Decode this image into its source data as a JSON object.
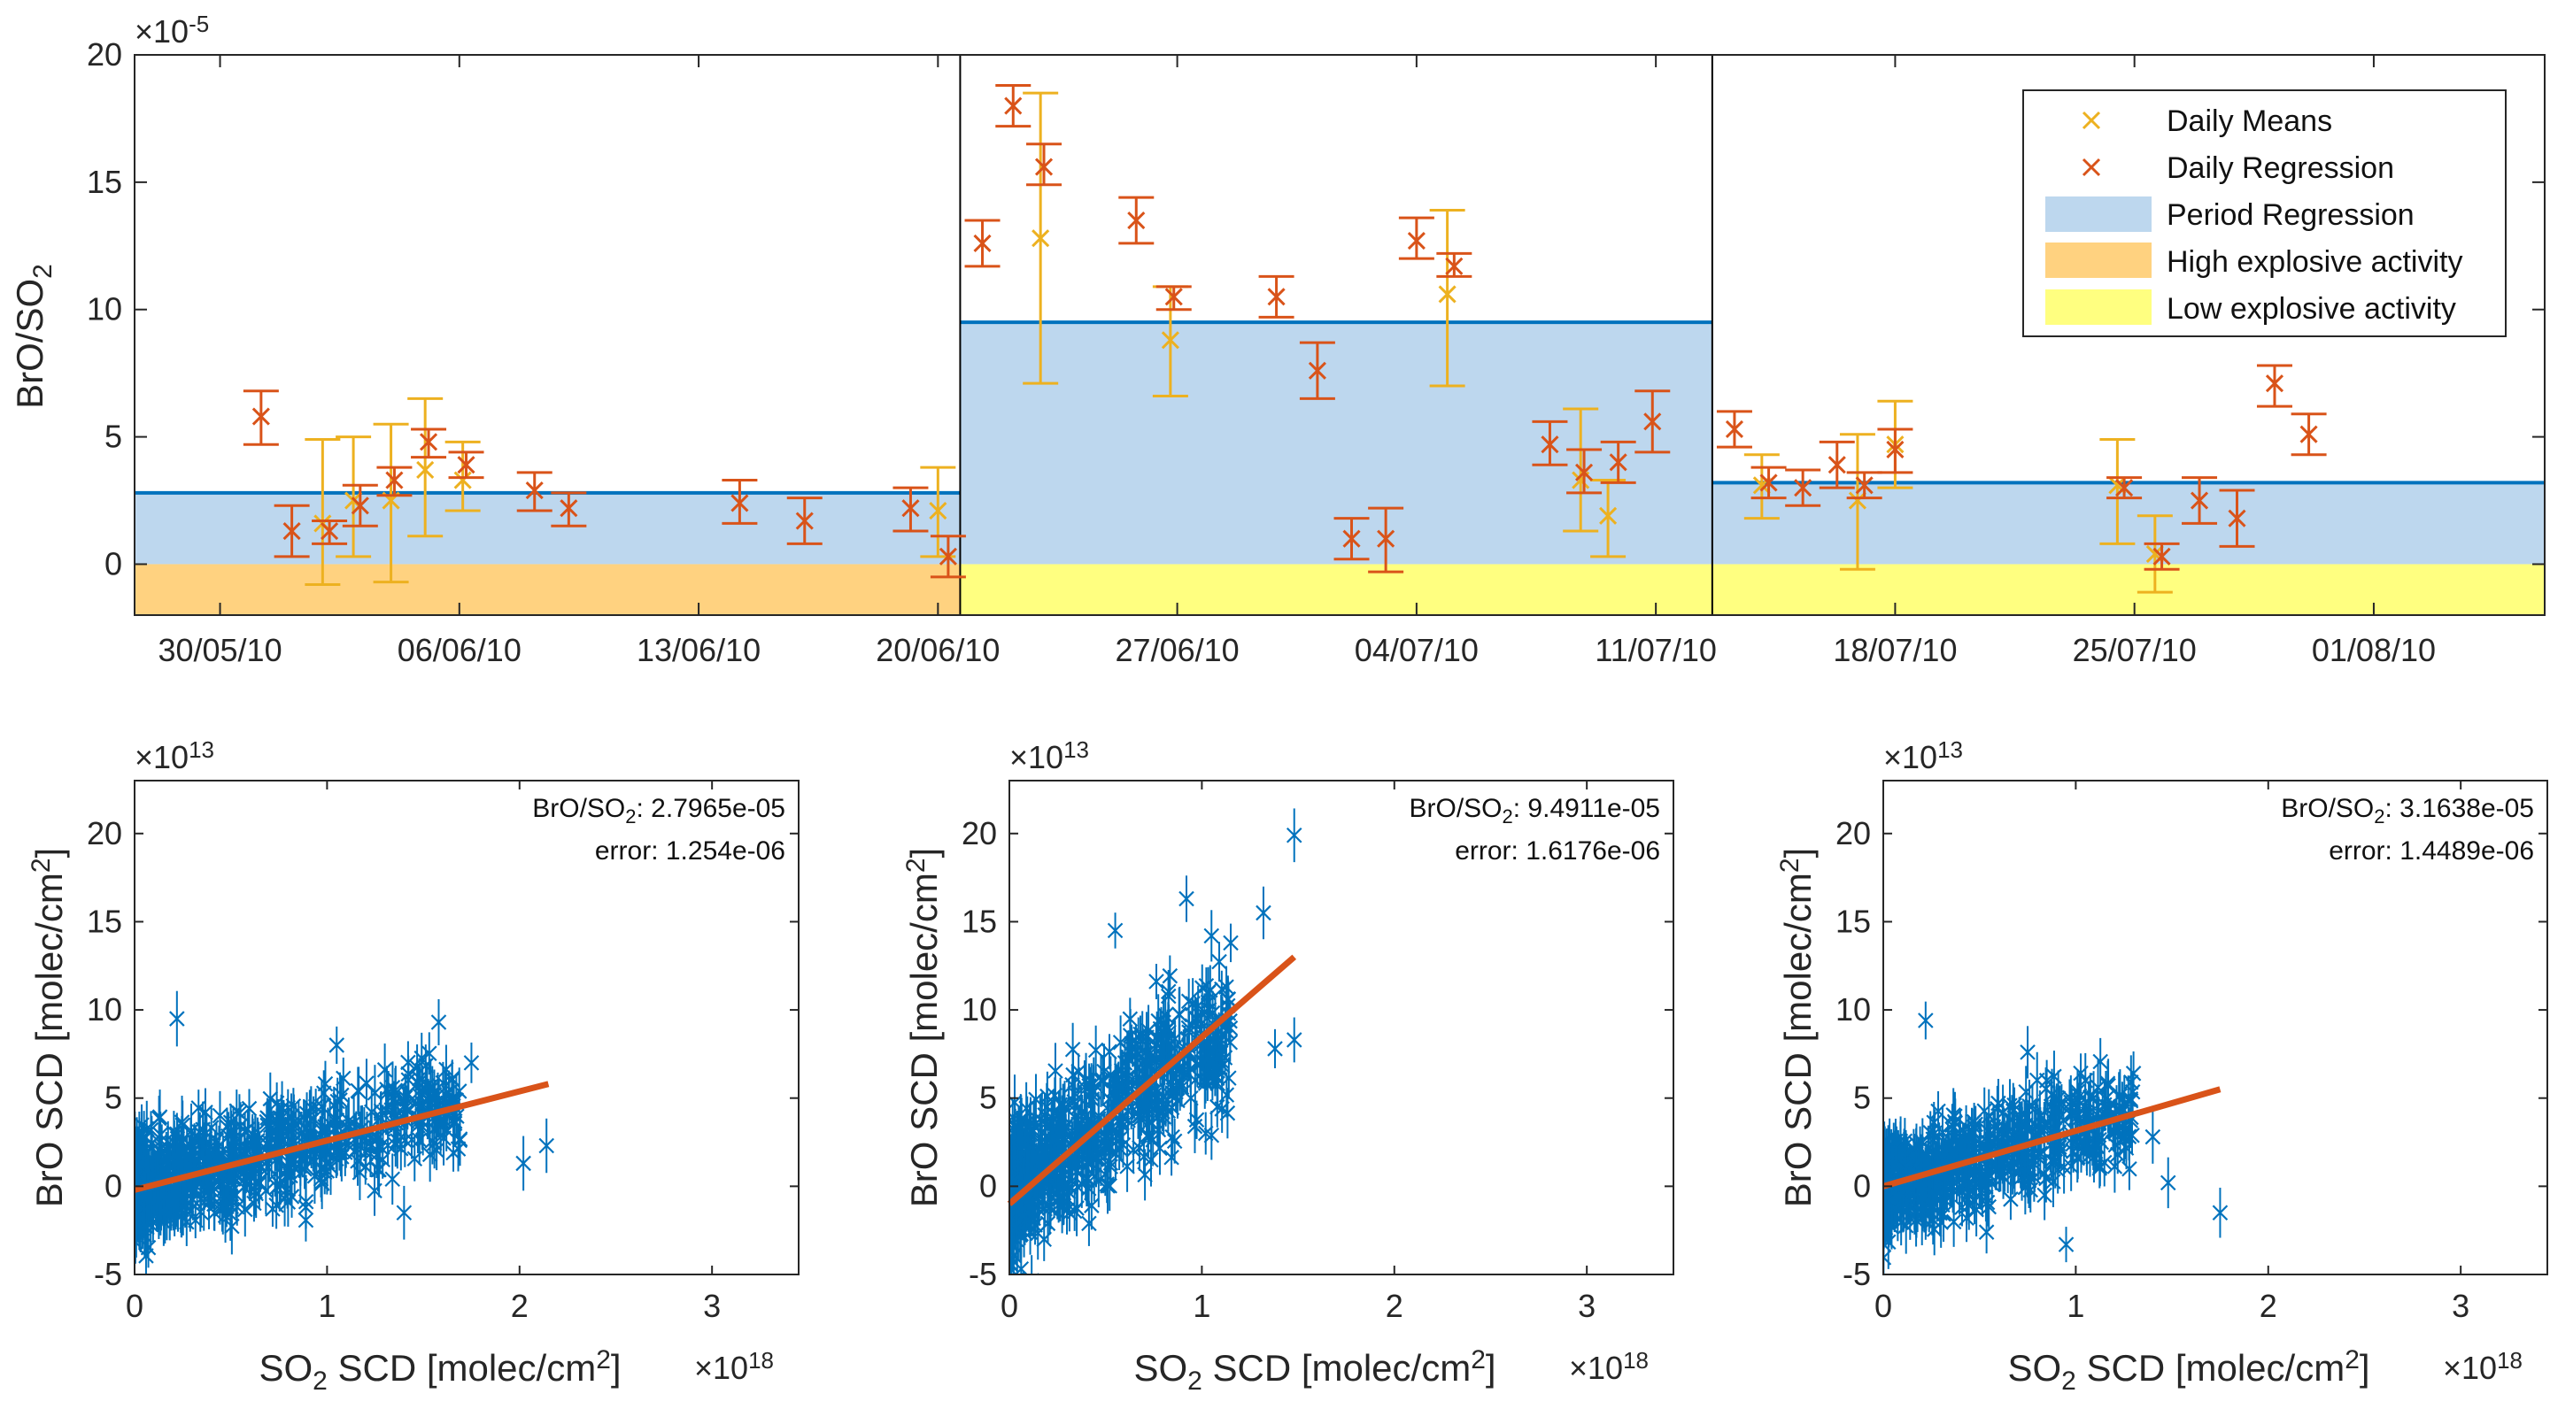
{
  "colors": {
    "daily_means": "#EDB120",
    "daily_regression": "#D95319",
    "period_fill": "#BDD7EE",
    "period_line": "#0072BD",
    "high_explosive": "#FFD280",
    "low_explosive": "#FFFF80",
    "scatter": "#0072BD",
    "fit": "#D95319"
  },
  "chart_data": [
    {
      "type": "scatter",
      "id": "timeseries",
      "ylabel": "BrO/SO",
      "ylabel_sub": "2",
      "y_exponent_base": "×10",
      "y_exponent_power": "-5",
      "ylim": [
        -2,
        20
      ],
      "yticks": [
        0,
        5,
        10,
        15,
        20
      ],
      "ytick_labels": [
        "0",
        "5",
        "10",
        "15",
        "20"
      ],
      "xlim": [
        0,
        70.5
      ],
      "xticks": [
        2.5,
        9.5,
        16.5,
        23.5,
        30.5,
        37.5,
        44.5,
        51.5,
        58.5,
        65.5
      ],
      "xtick_labels": [
        "30/05/10",
        "06/06/10",
        "13/06/10",
        "20/06/10",
        "27/06/10",
        "04/07/10",
        "11/07/10",
        "18/07/10",
        "25/07/10",
        "01/08/10"
      ],
      "period_boundaries": [
        24.15,
        46.15
      ],
      "periods": [
        {
          "x0": 0,
          "x1": 24.15,
          "regression": 2.8,
          "activity": "high",
          "act_top": 0
        },
        {
          "x0": 24.15,
          "x1": 46.15,
          "regression": 9.5,
          "activity": "low",
          "act_top": 0
        },
        {
          "x0": 46.15,
          "x1": 70.5,
          "regression": 3.2,
          "activity": "low",
          "act_top": 0
        }
      ],
      "legend": {
        "location": "top-right",
        "entries": [
          "Daily Means",
          "Daily Regression",
          "Period Regression",
          "High explosive activity",
          "Low explosive activity"
        ]
      },
      "series": [
        {
          "name": "Daily Means",
          "points": [
            {
              "x": 5.5,
              "y": 1.6,
              "lo": -0.8,
              "hi": 4.9
            },
            {
              "x": 6.4,
              "y": 2.5,
              "lo": 0.3,
              "hi": 5.0
            },
            {
              "x": 7.5,
              "y": 2.5,
              "lo": -0.7,
              "hi": 5.5
            },
            {
              "x": 8.5,
              "y": 3.7,
              "lo": 1.1,
              "hi": 6.5
            },
            {
              "x": 9.6,
              "y": 3.3,
              "lo": 2.1,
              "hi": 4.8
            },
            {
              "x": 23.5,
              "y": 2.1,
              "lo": 0.3,
              "hi": 3.8
            },
            {
              "x": 26.5,
              "y": 12.8,
              "lo": 7.1,
              "hi": 18.5
            },
            {
              "x": 30.3,
              "y": 8.8,
              "lo": 6.6,
              "hi": 10.9
            },
            {
              "x": 38.4,
              "y": 10.6,
              "lo": 7.0,
              "hi": 13.9
            },
            {
              "x": 42.3,
              "y": 3.3,
              "lo": 1.3,
              "hi": 6.1
            },
            {
              "x": 43.1,
              "y": 1.9,
              "lo": 0.3,
              "hi": 3.3
            },
            {
              "x": 47.6,
              "y": 3.1,
              "lo": 1.8,
              "hi": 4.3
            },
            {
              "x": 50.4,
              "y": 2.5,
              "lo": -0.2,
              "hi": 5.1
            },
            {
              "x": 51.5,
              "y": 4.7,
              "lo": 3.0,
              "hi": 6.4
            },
            {
              "x": 58.0,
              "y": 3.1,
              "lo": 0.8,
              "hi": 4.9
            },
            {
              "x": 59.1,
              "y": 0.4,
              "lo": -1.1,
              "hi": 1.9
            }
          ]
        },
        {
          "name": "Daily Regression",
          "points": [
            {
              "x": 3.7,
              "y": 5.8,
              "lo": 4.7,
              "hi": 6.8
            },
            {
              "x": 4.6,
              "y": 1.3,
              "lo": 0.3,
              "hi": 2.3
            },
            {
              "x": 5.7,
              "y": 1.3,
              "lo": 0.8,
              "hi": 1.7
            },
            {
              "x": 6.6,
              "y": 2.3,
              "lo": 1.5,
              "hi": 3.1
            },
            {
              "x": 7.6,
              "y": 3.3,
              "lo": 2.7,
              "hi": 3.8
            },
            {
              "x": 8.6,
              "y": 4.8,
              "lo": 4.2,
              "hi": 5.3
            },
            {
              "x": 9.7,
              "y": 3.9,
              "lo": 3.4,
              "hi": 4.4
            },
            {
              "x": 11.7,
              "y": 2.9,
              "lo": 2.1,
              "hi": 3.6
            },
            {
              "x": 12.7,
              "y": 2.2,
              "lo": 1.5,
              "hi": 2.8
            },
            {
              "x": 17.7,
              "y": 2.4,
              "lo": 1.6,
              "hi": 3.3
            },
            {
              "x": 19.6,
              "y": 1.7,
              "lo": 0.8,
              "hi": 2.6
            },
            {
              "x": 22.7,
              "y": 2.2,
              "lo": 1.3,
              "hi": 3.0
            },
            {
              "x": 23.8,
              "y": 0.3,
              "lo": -0.5,
              "hi": 1.1
            },
            {
              "x": 24.8,
              "y": 12.6,
              "lo": 11.7,
              "hi": 13.5
            },
            {
              "x": 25.7,
              "y": 18.0,
              "lo": 17.2,
              "hi": 18.8
            },
            {
              "x": 26.6,
              "y": 15.6,
              "lo": 14.9,
              "hi": 16.5
            },
            {
              "x": 29.3,
              "y": 13.5,
              "lo": 12.6,
              "hi": 14.4
            },
            {
              "x": 30.4,
              "y": 10.5,
              "lo": 10.0,
              "hi": 10.9
            },
            {
              "x": 33.4,
              "y": 10.5,
              "lo": 9.7,
              "hi": 11.3
            },
            {
              "x": 34.6,
              "y": 7.6,
              "lo": 6.5,
              "hi": 8.7
            },
            {
              "x": 35.6,
              "y": 1.0,
              "lo": 0.2,
              "hi": 1.8
            },
            {
              "x": 36.6,
              "y": 1.0,
              "lo": -0.3,
              "hi": 2.2
            },
            {
              "x": 37.5,
              "y": 12.7,
              "lo": 12.0,
              "hi": 13.6
            },
            {
              "x": 38.6,
              "y": 11.7,
              "lo": 11.3,
              "hi": 12.2
            },
            {
              "x": 41.4,
              "y": 4.7,
              "lo": 3.9,
              "hi": 5.6
            },
            {
              "x": 42.4,
              "y": 3.6,
              "lo": 2.8,
              "hi": 4.5
            },
            {
              "x": 43.4,
              "y": 4.0,
              "lo": 3.2,
              "hi": 4.8
            },
            {
              "x": 44.4,
              "y": 5.6,
              "lo": 4.4,
              "hi": 6.8
            },
            {
              "x": 46.8,
              "y": 5.3,
              "lo": 4.6,
              "hi": 6.0
            },
            {
              "x": 47.8,
              "y": 3.2,
              "lo": 2.6,
              "hi": 3.8
            },
            {
              "x": 48.8,
              "y": 3.0,
              "lo": 2.3,
              "hi": 3.7
            },
            {
              "x": 49.8,
              "y": 3.9,
              "lo": 3.0,
              "hi": 4.8
            },
            {
              "x": 50.6,
              "y": 3.1,
              "lo": 2.6,
              "hi": 3.6
            },
            {
              "x": 51.5,
              "y": 4.5,
              "lo": 3.6,
              "hi": 5.3
            },
            {
              "x": 58.2,
              "y": 3.0,
              "lo": 2.6,
              "hi": 3.4
            },
            {
              "x": 59.3,
              "y": 0.3,
              "lo": -0.2,
              "hi": 0.8
            },
            {
              "x": 60.4,
              "y": 2.5,
              "lo": 1.6,
              "hi": 3.4
            },
            {
              "x": 61.5,
              "y": 1.8,
              "lo": 0.7,
              "hi": 2.9
            },
            {
              "x": 62.6,
              "y": 7.1,
              "lo": 6.2,
              "hi": 7.8
            },
            {
              "x": 63.6,
              "y": 5.1,
              "lo": 4.3,
              "hi": 5.9
            }
          ]
        }
      ]
    },
    {
      "type": "scatter",
      "id": "regression-1",
      "xlabel": "SO",
      "xlabel_sub": "2",
      "xlabel_rest": " SCD [molec/cm",
      "xlabel_sup": "2",
      "xlabel_end": "]",
      "x_exponent_base": "×10",
      "x_exponent_power": "18",
      "ylabel": "BrO SCD [molec/cm",
      "ylabel_sup": "2",
      "ylabel_end": "]",
      "y_exponent_base": "×10",
      "y_exponent_power": "13",
      "xlim": [
        0,
        3.45
      ],
      "ylim": [
        -5,
        23
      ],
      "xticks": [
        0,
        1,
        2,
        3
      ],
      "yticks": [
        -5,
        0,
        5,
        10,
        15,
        20
      ],
      "annotation_ratio_label": "BrO/SO",
      "annotation_ratio_sub": "2",
      "annotation_ratio_value": ": 2.7965e-05",
      "annotation_error": "error: 1.254e-06",
      "fit": {
        "x": [
          0,
          2.15
        ],
        "y": [
          -0.2,
          5.8
        ]
      },
      "cloud": {
        "x_max": 1.7,
        "slope": 2.8,
        "intercept": -0.2,
        "spread": 2.6,
        "n": 700,
        "seed": 11
      },
      "outliers": [
        [
          2.02,
          1.3
        ],
        [
          2.14,
          2.3
        ],
        [
          1.58,
          9.3
        ],
        [
          1.75,
          7.0
        ],
        [
          1.4,
          -1.5
        ],
        [
          1.62,
          3.2
        ],
        [
          0.22,
          9.5
        ],
        [
          1.05,
          8.0
        ],
        [
          1.52,
          5.7
        ],
        [
          1.3,
          6.6
        ]
      ]
    },
    {
      "type": "scatter",
      "id": "regression-2",
      "xlabel": "SO",
      "xlabel_sub": "2",
      "xlabel_rest": " SCD [molec/cm",
      "xlabel_sup": "2",
      "xlabel_end": "]",
      "x_exponent_base": "×10",
      "x_exponent_power": "18",
      "ylabel": "BrO SCD [molec/cm",
      "ylabel_sup": "2",
      "ylabel_end": "]",
      "y_exponent_base": "×10",
      "y_exponent_power": "13",
      "xlim": [
        0,
        3.45
      ],
      "ylim": [
        -5,
        23
      ],
      "xticks": [
        0,
        1,
        2,
        3
      ],
      "yticks": [
        -5,
        0,
        5,
        10,
        15,
        20
      ],
      "annotation_ratio_label": "BrO/SO",
      "annotation_ratio_sub": "2",
      "annotation_ratio_value": ": 9.4911e-05",
      "annotation_error": "error: 1.6176e-06",
      "fit": {
        "x": [
          0,
          1.48
        ],
        "y": [
          -1.0,
          13.0
        ]
      },
      "cloud": {
        "x_max": 1.15,
        "slope": 8.5,
        "intercept": -0.5,
        "spread": 3.6,
        "n": 700,
        "seed": 29
      },
      "outliers": [
        [
          1.48,
          19.9
        ],
        [
          1.48,
          8.3
        ],
        [
          1.32,
          15.5
        ],
        [
          1.38,
          7.8
        ],
        [
          1.15,
          13.8
        ],
        [
          0.92,
          16.3
        ],
        [
          1.05,
          14.2
        ],
        [
          0.55,
          14.5
        ],
        [
          1.08,
          4.5
        ],
        [
          1.02,
          3.0
        ]
      ]
    },
    {
      "type": "scatter",
      "id": "regression-3",
      "xlabel": "SO",
      "xlabel_sub": "2",
      "xlabel_rest": " SCD [molec/cm",
      "xlabel_sup": "2",
      "xlabel_end": "]",
      "x_exponent_base": "×10",
      "x_exponent_power": "18",
      "ylabel": "BrO SCD [molec/cm",
      "ylabel_sup": "2",
      "ylabel_end": "]",
      "y_exponent_base": "×10",
      "y_exponent_power": "13",
      "xlim": [
        0,
        3.45
      ],
      "ylim": [
        -5,
        23
      ],
      "xticks": [
        0,
        1,
        2,
        3
      ],
      "yticks": [
        -5,
        0,
        5,
        10,
        15,
        20
      ],
      "annotation_ratio_label": "BrO/SO",
      "annotation_ratio_sub": "2",
      "annotation_ratio_value": ": 3.1638e-05",
      "annotation_error": "error: 1.4489e-06",
      "fit": {
        "x": [
          0,
          1.75
        ],
        "y": [
          0.0,
          5.5
        ]
      },
      "cloud": {
        "x_max": 1.3,
        "slope": 3.2,
        "intercept": 0.0,
        "spread": 2.6,
        "n": 650,
        "seed": 47
      },
      "outliers": [
        [
          1.75,
          -1.5
        ],
        [
          1.48,
          0.2
        ],
        [
          1.3,
          6.4
        ],
        [
          0.95,
          -3.3
        ],
        [
          0.22,
          9.4
        ],
        [
          0.75,
          7.6
        ],
        [
          1.05,
          6.0
        ],
        [
          1.4,
          2.8
        ]
      ]
    }
  ]
}
